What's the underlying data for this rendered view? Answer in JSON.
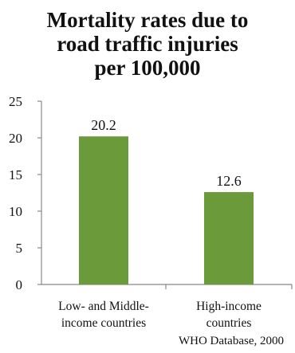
{
  "chart_data": {
    "type": "bar",
    "title_lines": [
      "Mortality rates due to",
      "road traffic injuries",
      "per 100,000"
    ],
    "categories": [
      [
        "Low- and Middle-",
        "income countries"
      ],
      [
        "High-income",
        "countries"
      ]
    ],
    "values": [
      20.2,
      12.6
    ],
    "value_labels": [
      "20.2",
      "12.6"
    ],
    "yticks": [
      "0",
      "5",
      "10",
      "15",
      "20",
      "25"
    ],
    "ylim": [
      0,
      25
    ],
    "bar_color": "#6a9a3a",
    "grid": false,
    "legend": "none",
    "source": "WHO Database, 2000"
  }
}
